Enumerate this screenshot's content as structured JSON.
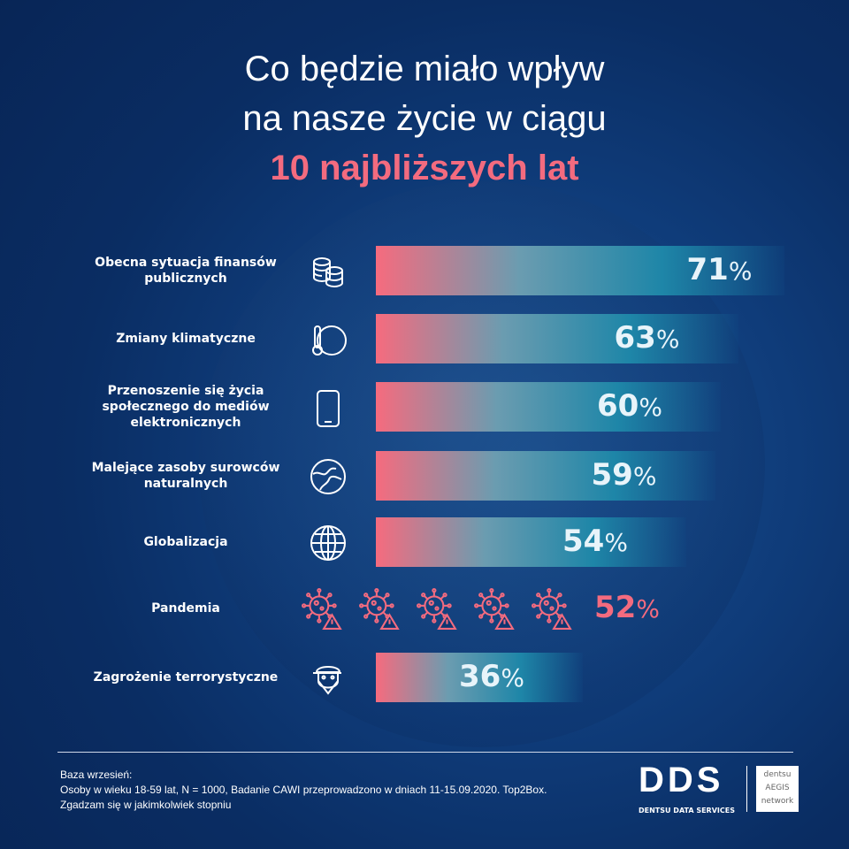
{
  "title": {
    "line1": "Co będzie miało wpływ",
    "line2": "na nasze życie w ciągu",
    "line3": "10 najbliższych lat"
  },
  "chart_data": {
    "type": "bar",
    "orientation": "horizontal",
    "categories": [
      "Obecna sytuacja finansów publicznych",
      "Zmiany klimatyczne",
      "Przenoszenie się życia społecznego do mediów elektronicznych",
      "Malejące zasoby surowców naturalnych",
      "Globalizacja",
      "Pandemia",
      "Zagrożenie terrorystyczne"
    ],
    "values": [
      71,
      63,
      60,
      59,
      54,
      52,
      36
    ],
    "labels": [
      "71",
      "63",
      "60",
      "59",
      "54",
      "52",
      "36"
    ],
    "unit": "%",
    "icons": [
      "coins-icon",
      "thermometer-globe-icon",
      "smartphone-icon",
      "earth-icon",
      "globe-grid-icon",
      "virus-warning-icon",
      "terrorist-mask-icon"
    ],
    "colors": {
      "gradient_start": "#f66b7e",
      "gradient_end": "#1e86a8",
      "pandemia": "#f36b7f"
    }
  },
  "footer": {
    "line1": "Baza wrzesień:",
    "line2": "Osoby w wieku 18-59 lat, N = 1000, Badanie CAWI przeprowadzono w dniach 11-15.09.2020. Top2Box.",
    "line3": "Zgadzam się w jakimkolwiek stopniu"
  },
  "logos": {
    "dds": "DDS",
    "dds_sub": "DENTSU DATA SERVICES",
    "aegis1": "dentsu",
    "aegis2": "AEGIS",
    "aegis3": "network"
  }
}
